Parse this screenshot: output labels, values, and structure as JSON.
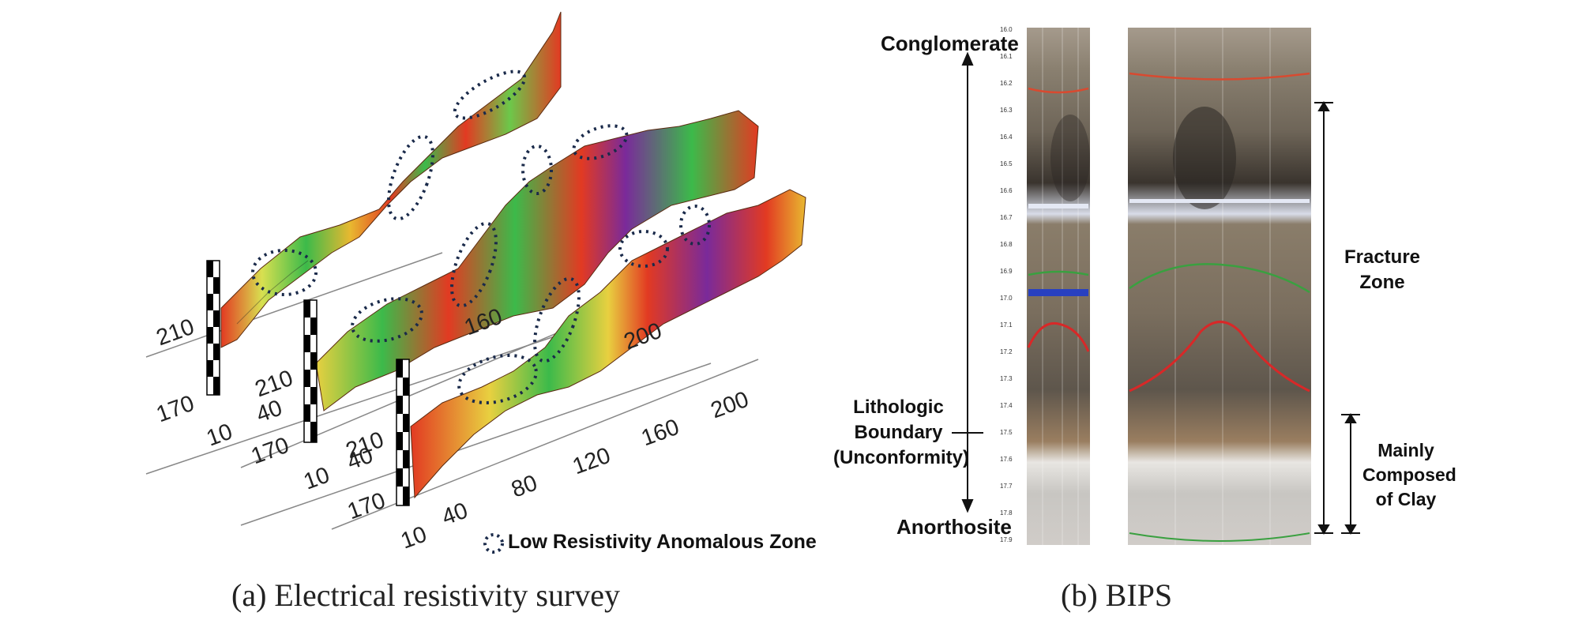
{
  "panel_a": {
    "caption": "(a) Electrical resistivity survey",
    "legend_label": "Low Resistivity Anomalous Zone",
    "profile1": {
      "elev_top": "210",
      "elev_bottom": "170",
      "x_ticks": [
        "10",
        "40"
      ]
    },
    "profile2": {
      "elev_top": "210",
      "elev_bottom": "170",
      "x_ticks": [
        "10",
        "40",
        "160",
        "200"
      ]
    },
    "profile3": {
      "elev_top": "210",
      "elev_bottom": "170",
      "x_ticks": [
        "10",
        "40",
        "80",
        "120",
        "160",
        "200"
      ]
    },
    "colors": {
      "low": "#3cba4a",
      "mid": "#e8d040",
      "high": "#e23a22",
      "very_high": "#7a2a9a"
    }
  },
  "panel_b": {
    "caption": "(b) BIPS",
    "top_label": "Conglomerate",
    "boundary_label": [
      "Lithologic",
      "Boundary",
      "(Unconformity)"
    ],
    "bottom_label": "Anorthosite",
    "fracture_label": [
      "Fracture",
      "Zone"
    ],
    "clay_label": [
      "Mainly",
      "Composed",
      "of Clay"
    ],
    "depth_ticks": [
      "16.0",
      "16.1",
      "16.2",
      "16.3",
      "16.4",
      "16.5",
      "16.6",
      "16.7",
      "16.8",
      "16.9",
      "17.0",
      "17.1",
      "17.2",
      "17.3",
      "17.4",
      "17.5",
      "17.6",
      "17.7",
      "17.8",
      "17.9"
    ]
  }
}
